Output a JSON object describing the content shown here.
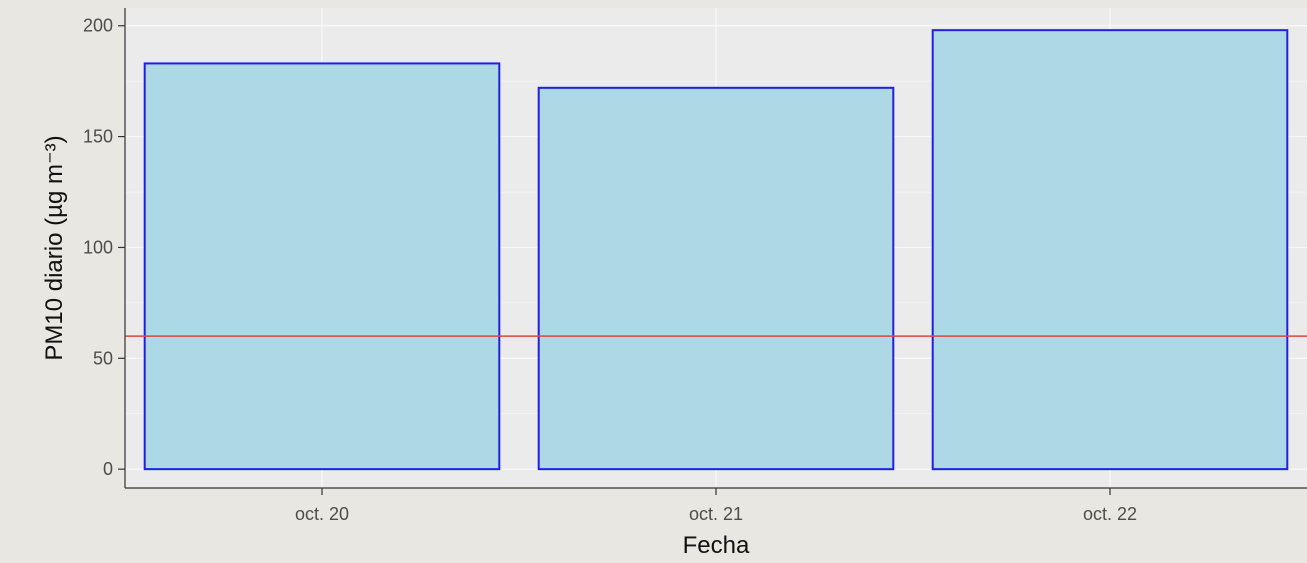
{
  "chart_data": {
    "type": "bar",
    "categories": [
      "oct. 20",
      "oct. 21",
      "oct. 22"
    ],
    "values": [
      183,
      172,
      198
    ],
    "xlabel": "Fecha",
    "ylabel": "PM10 diario (µg m⁻³)",
    "ylim": [
      -8.5,
      208
    ],
    "yticks": [
      0,
      50,
      100,
      150,
      200
    ],
    "reference_line": {
      "y": 60,
      "color": "#e0453f"
    },
    "grid": true,
    "colors": {
      "bar_fill": "#add8e6",
      "bar_stroke": "#1f1fe6",
      "panel_background": "#ebebeb",
      "page_background": "#e9e7e2",
      "grid": "#f7f7f7",
      "axis_line": "#333333"
    }
  }
}
